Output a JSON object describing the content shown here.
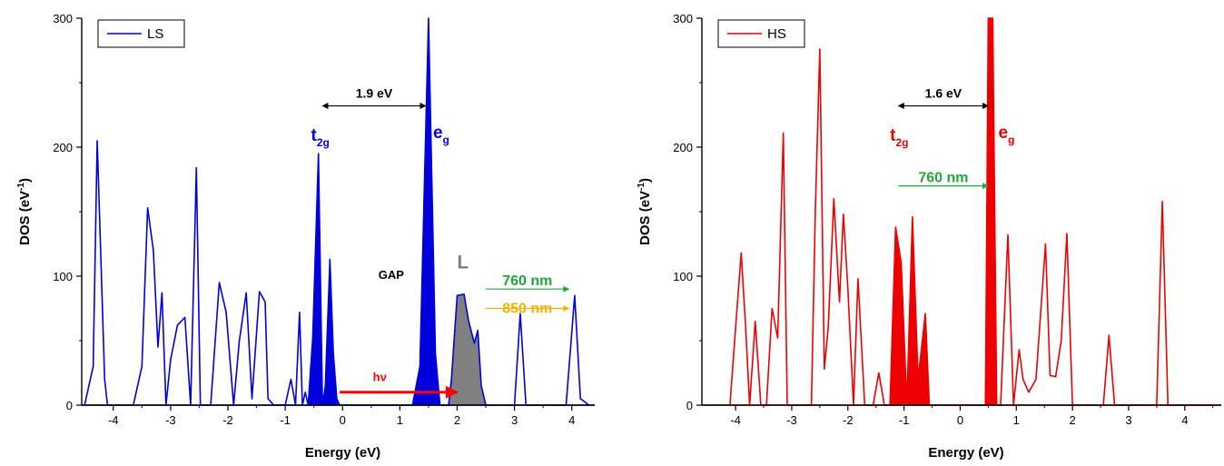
{
  "chart_data": [
    {
      "type": "line",
      "title": "",
      "xlabel": "Energy (eV)",
      "ylabel": "DOS (eV",
      "ylabel_sup": "-1",
      "ylabel_end": ")",
      "xlim": [
        -4.55,
        4.4
      ],
      "ylim": [
        0,
        300
      ],
      "xticks": [
        "-4",
        "-3",
        "-2",
        "-1",
        "0",
        "1",
        "2",
        "3",
        "4"
      ],
      "yticks": [
        "0",
        "100",
        "200",
        "300"
      ],
      "legend": {
        "label": "LS",
        "placement": "top-left"
      },
      "grid": false,
      "series": [
        {
          "name": "LS",
          "color": "#0000dd",
          "x": [
            -4.5,
            -4.35,
            -4.28,
            -4.22,
            -4.15,
            -4.1,
            -4.05,
            -3.65,
            -3.5,
            -3.4,
            -3.3,
            -3.22,
            -3.15,
            -3.08,
            -3.0,
            -2.88,
            -2.75,
            -2.65,
            -2.55,
            -2.48,
            -2.3,
            -2.15,
            -2.03,
            -1.9,
            -1.8,
            -1.68,
            -1.58,
            -1.45,
            -1.35,
            -1.3,
            -1.2,
            -1.0,
            -0.9,
            -0.82,
            -0.75,
            -0.7,
            -0.65,
            -0.6,
            -0.52,
            -0.42,
            -0.35,
            -0.3,
            -0.22,
            -0.16,
            -0.1,
            -0.05,
            0.0,
            1.22,
            1.35,
            1.5,
            1.62,
            1.7,
            1.85,
            1.9,
            2.0,
            2.12,
            2.2,
            2.3,
            2.36,
            2.42,
            2.5,
            3.0,
            3.1,
            3.2,
            3.9,
            4.05,
            4.15,
            4.3
          ],
          "y": [
            0,
            30,
            205,
            120,
            20,
            0,
            0,
            0,
            30,
            153,
            120,
            45,
            87,
            0,
            35,
            62,
            68,
            0,
            184,
            0,
            0,
            95,
            72,
            0,
            50,
            87,
            5,
            88,
            80,
            5,
            0,
            0,
            20,
            0,
            72,
            0,
            10,
            0,
            52,
            195,
            0,
            15,
            113,
            40,
            5,
            0,
            0,
            0,
            30,
            300,
            40,
            0,
            0,
            20,
            85,
            86,
            65,
            48,
            58,
            15,
            0,
            0,
            71,
            0,
            0,
            85,
            5,
            0
          ]
        }
      ],
      "filled_regions": [
        {
          "label": "t2g",
          "color": "#0000dd",
          "x": [
            -0.6,
            -0.52,
            -0.42,
            -0.35,
            -0.3,
            -0.22,
            -0.16,
            -0.1,
            -0.05
          ],
          "y": [
            0,
            52,
            195,
            0,
            15,
            113,
            40,
            5,
            0
          ]
        },
        {
          "label": "eg",
          "color": "#0000dd",
          "x": [
            1.22,
            1.35,
            1.5,
            1.62,
            1.7
          ],
          "y": [
            0,
            30,
            300,
            40,
            0
          ]
        },
        {
          "label": "L",
          "color": "#808080",
          "x": [
            1.85,
            1.9,
            2.0,
            2.12,
            2.2,
            2.3,
            2.36,
            2.42,
            2.5
          ],
          "y": [
            0,
            20,
            85,
            86,
            65,
            48,
            58,
            15,
            0
          ]
        }
      ],
      "annotations": {
        "gap_value": "1.9 eV",
        "gap_x": [
          -0.35,
          1.45
        ],
        "gap_y": 232,
        "t2g_main": "t",
        "t2g_sub": "2g",
        "t2g_x": -0.55,
        "t2g_y": 205,
        "eg_main": "e",
        "eg_sub": "g",
        "eg_x": 1.58,
        "eg_y": 207,
        "gap_label": "GAP",
        "gap_label_x": 0.85,
        "gap_label_y": 98,
        "L_label": "L",
        "L_x": 2.1,
        "L_y": 106,
        "hv_label": "hν",
        "hv_x": 0.65,
        "hv_y": 6,
        "hv_arrow_x": [
          -0.05,
          2.0
        ],
        "hv_arrow_y": 10,
        "hv_color": "#ff0000",
        "wl1_label": "760 nm",
        "wl1_color": "#1ea83a",
        "wl1_x": [
          2.5,
          3.95
        ],
        "wl1_y": 90,
        "wl2_label": "850 nm",
        "wl2_color": "#f0b400",
        "wl2_x": [
          2.5,
          3.95
        ],
        "wl2_y": 75
      }
    },
    {
      "type": "line",
      "title": "",
      "xlabel": "Energy (eV)",
      "ylabel": "DOS (eV",
      "ylabel_sup": "-1",
      "ylabel_end": ")",
      "xlim": [
        -4.6,
        4.65
      ],
      "ylim": [
        0,
        300
      ],
      "xticks": [
        "-4",
        "-3",
        "-2",
        "-1",
        "0",
        "1",
        "2",
        "3",
        "4"
      ],
      "yticks": [
        "0",
        "100",
        "200",
        "300"
      ],
      "legend": {
        "label": "HS",
        "placement": "top-left"
      },
      "grid": false,
      "series": [
        {
          "name": "HS",
          "color": "#ee0000",
          "x": [
            -4.1,
            -4.0,
            -3.9,
            -3.82,
            -3.75,
            -3.65,
            -3.55,
            -3.45,
            -3.35,
            -3.25,
            -3.15,
            -3.08,
            -2.65,
            -2.58,
            -2.5,
            -2.42,
            -2.35,
            -2.25,
            -2.15,
            -2.08,
            -2.0,
            -1.9,
            -1.82,
            -1.7,
            -1.55,
            -1.45,
            -1.35,
            -1.25,
            -1.15,
            -1.05,
            -0.95,
            -0.85,
            -0.75,
            -0.7,
            -0.62,
            -0.55,
            0.45,
            0.5,
            0.52,
            0.55,
            0.58,
            0.65,
            0.72,
            0.85,
            0.95,
            1.05,
            1.12,
            1.22,
            1.35,
            1.52,
            1.6,
            1.7,
            1.8,
            1.9,
            2.0,
            2.55,
            2.65,
            2.75,
            3.5,
            3.6,
            3.7,
            4.5
          ],
          "y": [
            0,
            60,
            118,
            60,
            0,
            65,
            0,
            0,
            75,
            52,
            211,
            0,
            0,
            150,
            276,
            28,
            60,
            160,
            80,
            148,
            90,
            0,
            98,
            0,
            0,
            25,
            0,
            0,
            138,
            110,
            0,
            146,
            20,
            40,
            71,
            0,
            0,
            300,
            300,
            300,
            300,
            0,
            0,
            132,
            0,
            43,
            20,
            10,
            20,
            125,
            23,
            22,
            50,
            133,
            0,
            0,
            54,
            0,
            0,
            158,
            0,
            0
          ]
        }
      ],
      "filled_regions": [
        {
          "label": "t2g",
          "color": "#ee0000",
          "x": [
            -1.25,
            -1.15,
            -1.05,
            -0.95,
            -0.85,
            -0.75,
            -0.7,
            -0.62,
            -0.55
          ],
          "y": [
            0,
            138,
            110,
            0,
            146,
            20,
            40,
            71,
            0
          ]
        },
        {
          "label": "eg",
          "color": "#ee0000",
          "x": [
            0.45,
            0.5,
            0.52,
            0.55,
            0.58,
            0.65
          ],
          "y": [
            0,
            300,
            300,
            300,
            300,
            0
          ]
        }
      ],
      "annotations": {
        "gap_value": "1.6 eV",
        "gap_x": [
          -1.1,
          0.5
        ],
        "gap_y": 232,
        "t2g_main": "t",
        "t2g_sub": "2g",
        "t2g_x": -1.25,
        "t2g_y": 205,
        "eg_main": "e",
        "eg_sub": "g",
        "eg_x": 0.68,
        "eg_y": 207,
        "wl1_label": "760 nm",
        "wl1_color": "#1ea83a",
        "wl1_x": [
          -1.1,
          0.5
        ],
        "wl1_y": 170
      }
    }
  ]
}
